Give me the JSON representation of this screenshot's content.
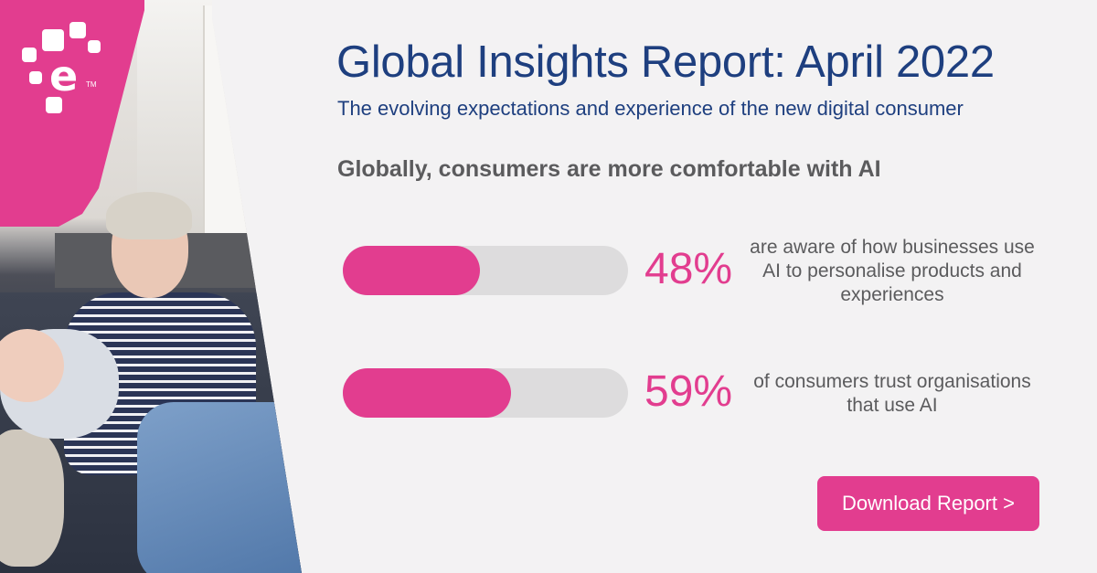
{
  "banner": {
    "title": "Global Insights Report: April 2022",
    "subtitle": "The evolving expectations and experience of the new digital consumer",
    "headline": "Globally, consumers are more comfortable with AI"
  },
  "logo": {
    "letter": "e",
    "trademark": "TM"
  },
  "stats": [
    {
      "percent": 48,
      "label": "48%",
      "description": "are aware of how businesses use AI to personalise products and experiences"
    },
    {
      "percent": 59,
      "label": "59%",
      "description": "of consumers trust organisations that use AI"
    }
  ],
  "cta": {
    "label": "Download Report >"
  },
  "colors": {
    "brand_pink": "#e23d8f",
    "navy": "#1e3f7f",
    "gray_text": "#5b5b5d",
    "track": "#dddcdd",
    "background": "#f3f2f3"
  }
}
